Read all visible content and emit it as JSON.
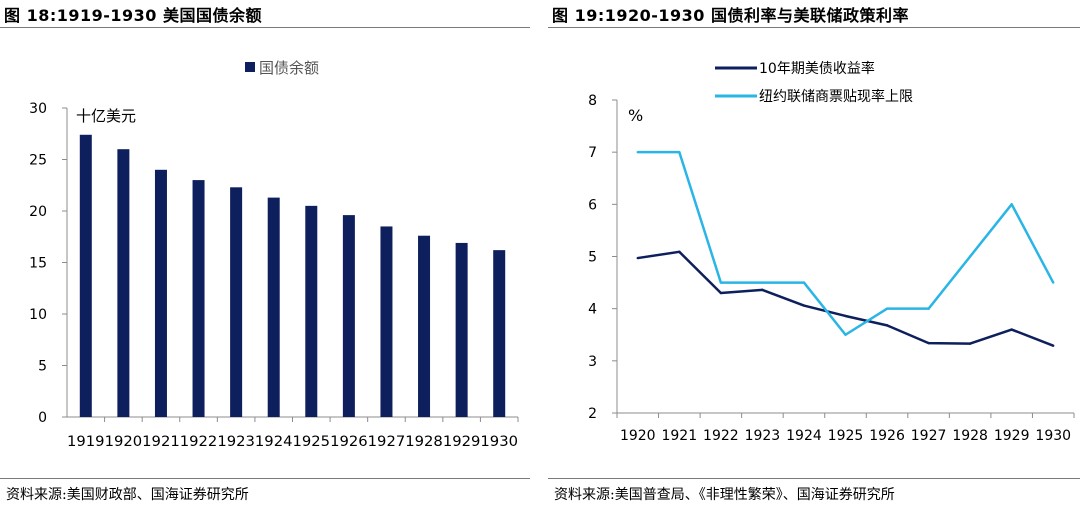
{
  "left": {
    "title": "图 18:1919-1930 美国国债余额",
    "source": "资料来源:美国财政部、国海证券研究所"
  },
  "right": {
    "title": "图 19:1920-1930 国债利率与美联储政策利率",
    "source": "资料来源:美国普查局、《非理性繁荣》、国海证券研究所"
  },
  "colors": {
    "navy": "#0d1f5c",
    "cyan": "#29b5e6",
    "axis": "#8c8c8c"
  },
  "chart_data": [
    {
      "type": "bar",
      "unit_label": "十亿美元",
      "categories": [
        "1919",
        "1920",
        "1921",
        "1922",
        "1923",
        "1924",
        "1925",
        "1926",
        "1927",
        "1928",
        "1929",
        "1930"
      ],
      "series": [
        {
          "name": "国债余额",
          "values": [
            27.4,
            26.0,
            24.0,
            23.0,
            22.3,
            21.3,
            20.5,
            19.6,
            18.5,
            17.6,
            16.9,
            16.2
          ]
        }
      ],
      "ylim": [
        0,
        30
      ],
      "yticks": [
        0,
        5,
        10,
        15,
        20,
        25,
        30
      ],
      "legend": "top"
    },
    {
      "type": "line",
      "unit_label": "%",
      "categories": [
        "1920",
        "1921",
        "1922",
        "1923",
        "1924",
        "1925",
        "1926",
        "1927",
        "1928",
        "1929",
        "1930"
      ],
      "series": [
        {
          "name": "10年期美债收益率",
          "values": [
            4.97,
            5.09,
            4.3,
            4.36,
            4.06,
            3.86,
            3.68,
            3.34,
            3.33,
            3.6,
            3.29
          ]
        },
        {
          "name": "纽约联储商票贴现率上限",
          "values": [
            7.0,
            7.0,
            4.5,
            4.5,
            4.5,
            3.5,
            4.0,
            4.0,
            5.0,
            6.0,
            4.5
          ]
        }
      ],
      "ylim": [
        2,
        8
      ],
      "yticks": [
        2,
        3,
        4,
        5,
        6,
        7,
        8
      ],
      "legend": "top-left"
    }
  ]
}
